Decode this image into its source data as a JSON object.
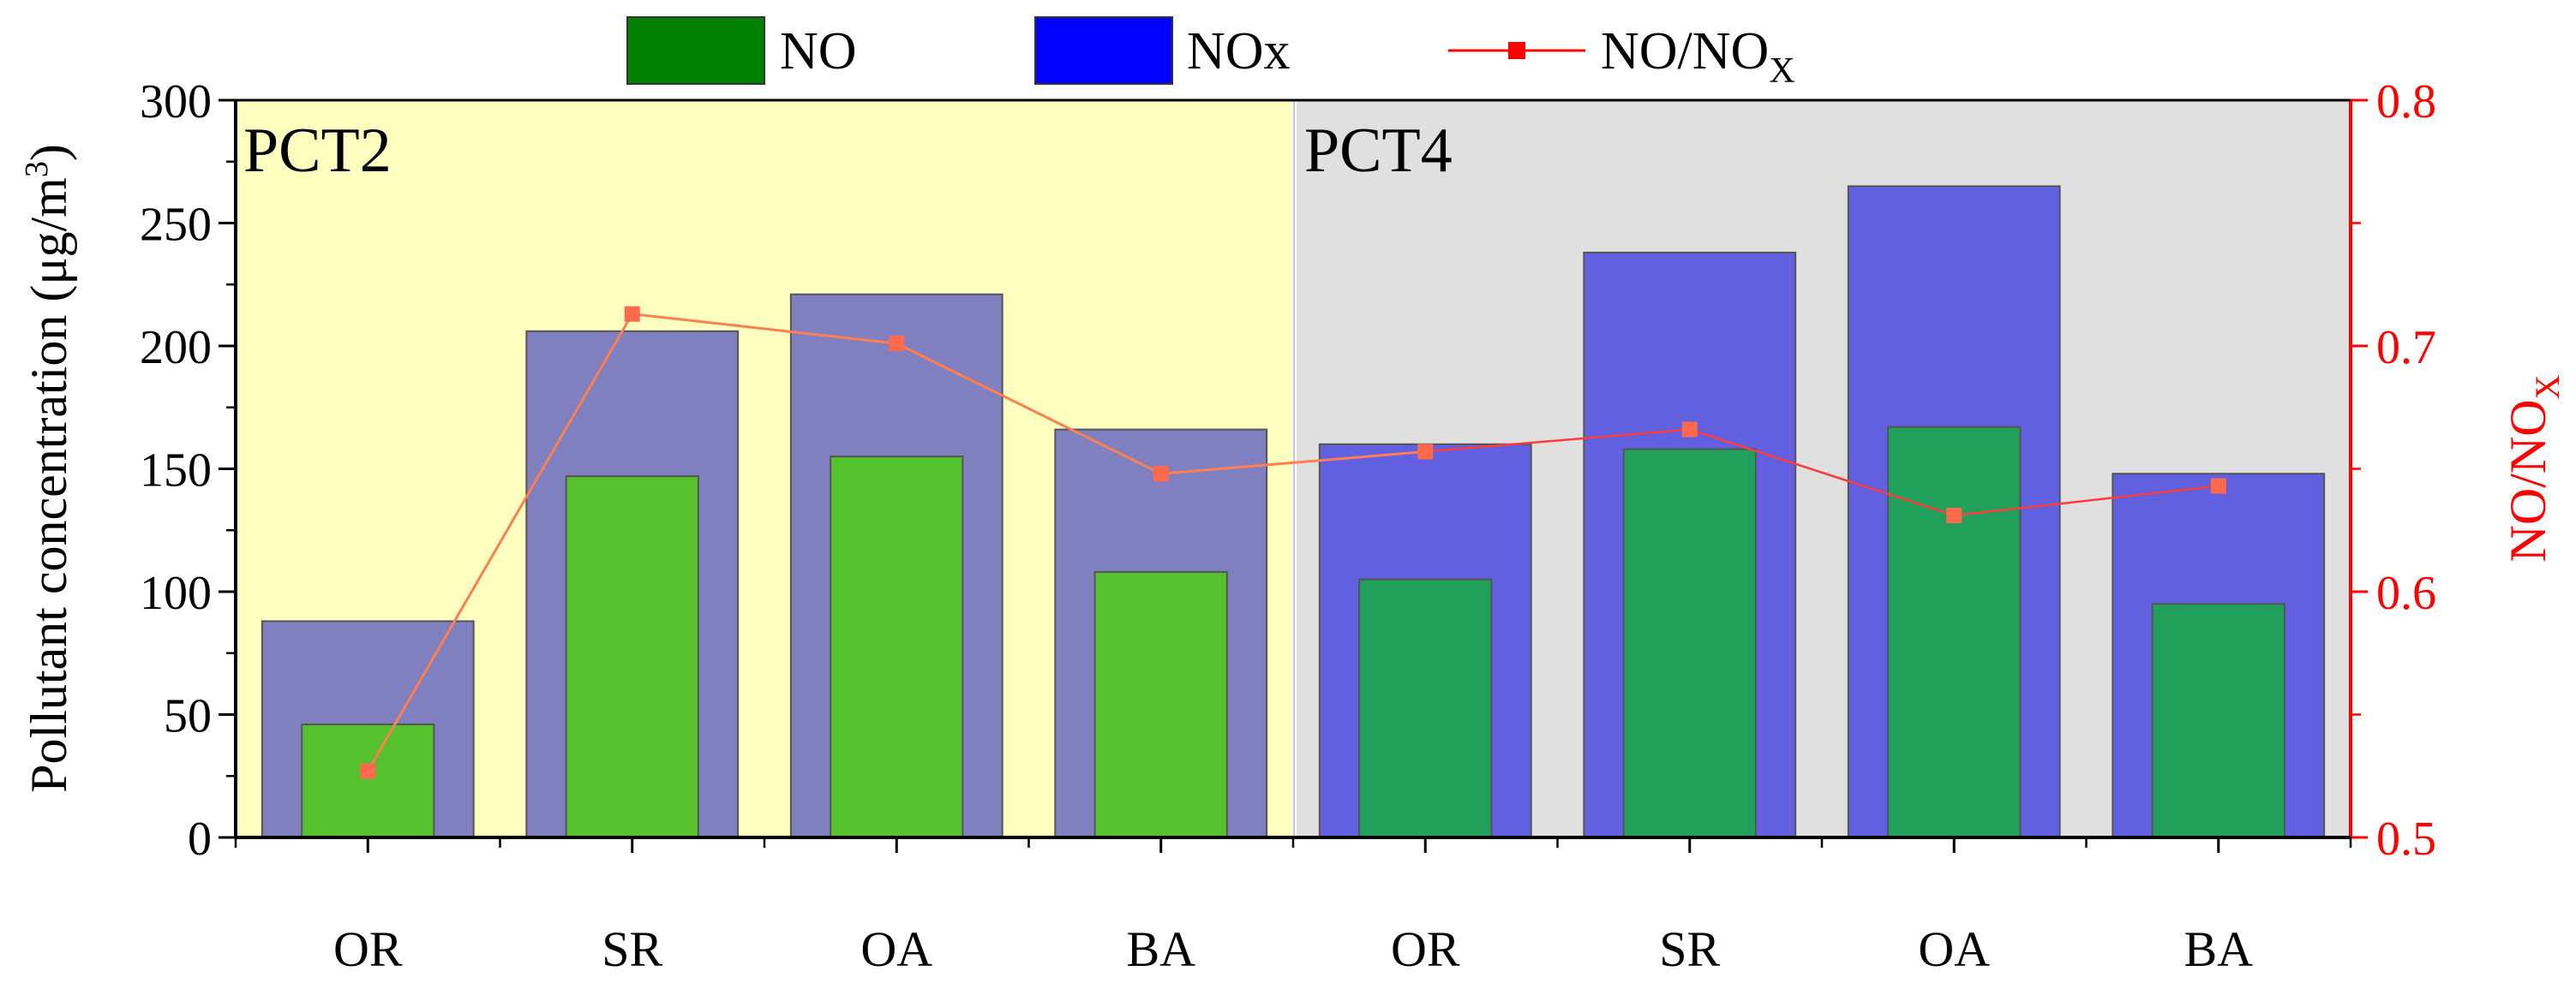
{
  "chart_data": {
    "type": "bar",
    "panels": [
      "PCT2",
      "PCT4"
    ],
    "categories": [
      "OR",
      "SR",
      "OA",
      "BA",
      "OR",
      "SR",
      "OA",
      "BA"
    ],
    "panel_of_category": [
      0,
      0,
      0,
      0,
      1,
      1,
      1,
      1
    ],
    "series": [
      {
        "name": "NOx",
        "axis": "left",
        "kind": "bar",
        "values": [
          88,
          206,
          221,
          166,
          160,
          238,
          265,
          148
        ]
      },
      {
        "name": "NO",
        "axis": "left",
        "kind": "bar",
        "values": [
          46,
          147,
          155,
          108,
          105,
          158,
          167,
          95
        ]
      },
      {
        "name": "NO/NOx",
        "axis": "right",
        "kind": "line",
        "values": [
          0.527,
          0.713,
          0.701,
          0.648,
          0.657,
          0.666,
          0.631,
          0.643
        ]
      }
    ],
    "legend": {
      "no": "NO",
      "nox": "NOx",
      "ratio": "NO/NO",
      "ratio_sub": "X"
    },
    "ylabel": "Pollutant concentration (μg/m",
    "ylabel_sup": "3",
    "ylabel_close": ")",
    "y2label": "NO/NO",
    "y2label_sub": "X",
    "ylim": [
      0,
      300
    ],
    "y2lim": [
      0.5,
      0.8
    ],
    "yticks": [
      "0",
      "50",
      "100",
      "150",
      "200",
      "250",
      "300"
    ],
    "y2ticks": [
      "0.5",
      "0.6",
      "0.7",
      "0.8"
    ],
    "colors": {
      "panel1_bg": "#ffffc0",
      "panel2_bg": "#e0e0e0",
      "nox_panel1": "#8080c0",
      "no_panel1": "#55c12d",
      "nox_panel2": "#6060e0",
      "no_panel2": "#21a05b",
      "legend_no": "#008000",
      "legend_nox": "#0000ff",
      "ratio_line": "#ff7f50",
      "ratio_marker": "#ff6a4d",
      "right_axis": "#ff0000"
    }
  }
}
